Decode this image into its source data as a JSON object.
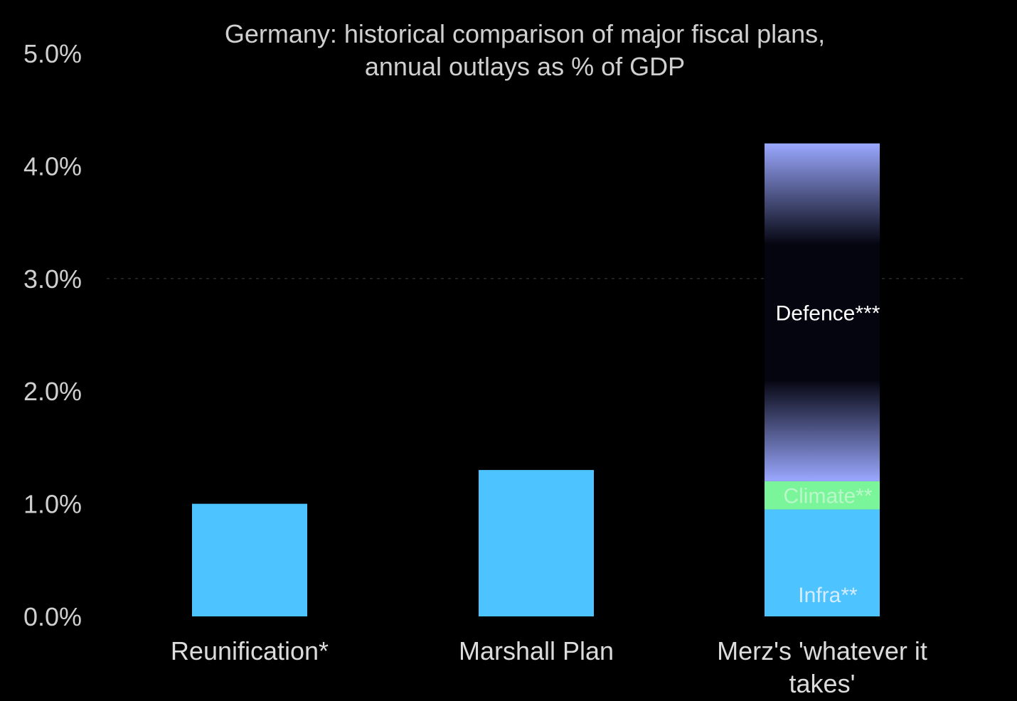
{
  "chart_data": {
    "type": "bar",
    "stacked": true,
    "title": "Germany: historical comparison of major fiscal plans, annual outlays as % of GDP",
    "title_lines": [
      "Germany: historical comparison of major fiscal plans,",
      "annual outlays as % of GDP"
    ],
    "xlabel": "",
    "ylabel": "",
    "ylim": [
      0,
      5
    ],
    "yticks": [
      0,
      1,
      2,
      3,
      4,
      5
    ],
    "ytick_labels": [
      "0.0%",
      "1.0%",
      "2.0%",
      "3.0%",
      "4.0%",
      "5.0%"
    ],
    "categories": [
      {
        "lines": [
          "Reunification*"
        ]
      },
      {
        "lines": [
          "Marshall Plan"
        ]
      },
      {
        "lines": [
          "Merz's 'whatever it",
          "takes'"
        ]
      }
    ],
    "series": [
      {
        "label": "Infra**",
        "values": [
          1.0,
          1.3,
          0.95
        ],
        "color": "#4dc3ff",
        "label_color": "#d6ecff",
        "label_position": "bottom"
      },
      {
        "label": "Climate**",
        "values": [
          0,
          0,
          0.25
        ],
        "color": "#7bf59a",
        "label_color": "#b9f7c9",
        "label_position": "center"
      },
      {
        "label": "Defence***",
        "values": [
          0,
          0,
          3.0
        ],
        "color": "#9aa8ff",
        "label_color": "#ffffff",
        "label_position": "center",
        "style": "gradient"
      }
    ],
    "grid": {
      "y_dashed_at": 3
    }
  }
}
